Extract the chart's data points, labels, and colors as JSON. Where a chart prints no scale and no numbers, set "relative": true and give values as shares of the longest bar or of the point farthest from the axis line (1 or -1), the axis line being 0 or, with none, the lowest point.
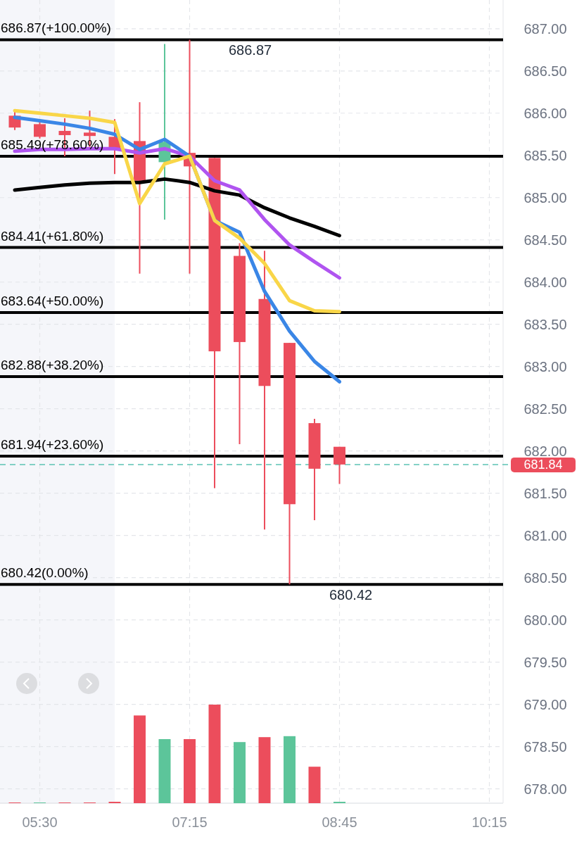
{
  "chart_data": [
    {
      "type": "candlestick",
      "categories": [
        null,
        "05:30",
        null,
        null,
        null,
        null,
        null,
        "07:15",
        null,
        null,
        null,
        null,
        null,
        "08:45",
        null,
        null,
        null,
        null,
        null,
        "10:15"
      ],
      "ohlc": [
        [
          685.97,
          686.02,
          685.8,
          685.83
        ],
        [
          685.87,
          685.91,
          685.7,
          685.72
        ],
        [
          685.79,
          685.94,
          685.49,
          685.74
        ],
        [
          685.77,
          686.03,
          685.57,
          685.73
        ],
        [
          685.72,
          685.93,
          685.28,
          685.59
        ],
        [
          685.67,
          686.13,
          684.1,
          685.2
        ],
        [
          685.42,
          686.82,
          684.74,
          685.66
        ],
        [
          685.53,
          686.87,
          684.1,
          685.37
        ],
        [
          685.47,
          685.47,
          681.56,
          683.18
        ],
        [
          684.31,
          684.46,
          682.08,
          683.29
        ],
        [
          683.8,
          684.37,
          681.07,
          682.77
        ],
        [
          683.28,
          683.28,
          680.42,
          681.37
        ],
        [
          682.33,
          682.38,
          681.18,
          681.79
        ],
        [
          682.05,
          682.05,
          681.61,
          681.84
        ],
        null,
        null,
        null,
        null,
        null,
        null
      ],
      "series": [
        {
          "type": "line",
          "color": "#000000",
          "values": [
            685.09,
            685.12,
            685.15,
            685.17,
            685.18,
            685.18,
            685.22,
            685.18,
            685.08,
            685.03,
            684.88,
            684.76,
            684.66,
            684.55,
            null,
            null,
            null,
            null,
            null,
            null
          ]
        },
        {
          "type": "line",
          "color": "#b054f0",
          "values": [
            685.55,
            685.57,
            685.57,
            685.58,
            685.58,
            685.53,
            685.58,
            685.49,
            685.2,
            685.09,
            684.74,
            684.44,
            684.24,
            684.05,
            null,
            null,
            null,
            null,
            null,
            null
          ]
        },
        {
          "type": "line",
          "color": "#3a86e6",
          "values": [
            685.95,
            685.91,
            685.87,
            685.82,
            685.75,
            685.57,
            685.69,
            685.49,
            684.73,
            684.59,
            683.89,
            683.42,
            683.06,
            682.82,
            null,
            null,
            null,
            null,
            null,
            null
          ]
        },
        {
          "type": "line",
          "color": "#f9d648",
          "values": [
            686.03,
            686,
            685.97,
            685.94,
            685.89,
            684.93,
            685.4,
            685.49,
            684.73,
            684.52,
            684.22,
            683.78,
            683.66,
            683.65,
            null,
            null,
            null,
            null,
            null,
            null
          ]
        }
      ],
      "ylim": [
        677.83,
        687.34
      ],
      "yticks": [
        {
          "value": 678,
          "label": "678.00"
        },
        {
          "value": 678.5,
          "label": "678.50"
        },
        {
          "value": 679,
          "label": "679.00"
        },
        {
          "value": 679.5,
          "label": "679.50"
        },
        {
          "value": 680,
          "label": "680.00"
        },
        {
          "value": 680.5,
          "label": "680.50"
        },
        {
          "value": 681,
          "label": "681.00"
        },
        {
          "value": 681.5,
          "label": "681.50"
        },
        {
          "value": 682,
          "label": "682.00"
        },
        {
          "value": 682.5,
          "label": "682.50"
        },
        {
          "value": 683,
          "label": "683.00"
        },
        {
          "value": 683.5,
          "label": "683.50"
        },
        {
          "value": 684,
          "label": "684.00"
        },
        {
          "value": 684.5,
          "label": "684.50"
        },
        {
          "value": 685,
          "label": "685.00"
        },
        {
          "value": 685.5,
          "label": "685.50"
        },
        {
          "value": 686,
          "label": "686.00"
        },
        {
          "value": 686.5,
          "label": "686.50"
        },
        {
          "value": 687,
          "label": "687.00"
        }
      ],
      "grid": true,
      "ref_lines": [
        {
          "axis": "y",
          "value": 686.87,
          "label": "686.87(+100.00%)",
          "color": "#000000"
        },
        {
          "axis": "y",
          "value": 685.49,
          "label": "685.49(+78.60%)",
          "color": "#000000"
        },
        {
          "axis": "y",
          "value": 684.41,
          "label": "684.41(+61.80%)",
          "color": "#000000"
        },
        {
          "axis": "y",
          "value": 683.64,
          "label": "683.64(+50.00%)",
          "color": "#000000"
        },
        {
          "axis": "y",
          "value": 682.88,
          "label": "682.88(+38.20%)",
          "color": "#000000"
        },
        {
          "axis": "y",
          "value": 681.94,
          "label": "681.94(+23.60%)",
          "color": "#000000"
        },
        {
          "axis": "y",
          "value": 680.42,
          "label": "680.42(0.00%)",
          "color": "#000000"
        },
        {
          "axis": "y",
          "value": 681.84,
          "label": "681.84",
          "color": "#5cc4b4",
          "line_style": "dashed"
        }
      ],
      "annotations": [
        {
          "text": "686.87",
          "y": 686.87
        },
        {
          "text": "680.42",
          "y": 680.42
        }
      ]
    },
    {
      "type": "bar",
      "relative": true,
      "categories": [
        null,
        null,
        null,
        null,
        null,
        null,
        null,
        null,
        null,
        null,
        null,
        null,
        null,
        null,
        null,
        null,
        null,
        null,
        null,
        null
      ],
      "values": [
        0.007,
        0.007,
        0.007,
        0.007,
        0.014,
        0.89,
        0.65,
        0.65,
        1,
        0.62,
        0.67,
        0.68,
        0.37,
        0.014,
        null,
        null,
        null,
        null,
        null,
        null
      ],
      "colors": [
        "#ec4d5c",
        "#5cc59a",
        "#ec4d5c",
        "#ec4d5c",
        "#ec4d5c",
        "#ec4d5c",
        "#5cc59a",
        "#ec4d5c",
        "#ec4d5c",
        "#5cc59a",
        "#ec4d5c",
        "#5cc59a",
        "#ec4d5c",
        "#5cc59a",
        null,
        null,
        null,
        null,
        null,
        null
      ]
    }
  ]
}
